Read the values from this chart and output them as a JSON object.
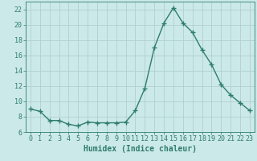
{
  "x": [
    0,
    1,
    2,
    3,
    4,
    5,
    6,
    7,
    8,
    9,
    10,
    11,
    12,
    13,
    14,
    15,
    16,
    17,
    18,
    19,
    20,
    21,
    22,
    23
  ],
  "y": [
    9.0,
    8.7,
    7.5,
    7.5,
    7.0,
    6.8,
    7.3,
    7.2,
    7.2,
    7.2,
    7.3,
    8.8,
    11.7,
    17.0,
    20.2,
    22.2,
    20.2,
    19.0,
    16.7,
    14.8,
    12.2,
    10.8,
    9.8,
    8.8
  ],
  "line_color": "#2e7d6e",
  "marker": "+",
  "markersize": 4,
  "linewidth": 1.0,
  "bg_color": "#cce9e9",
  "grid_color": "#b0cfcf",
  "xlabel": "Humidex (Indice chaleur)",
  "xlabel_fontsize": 7,
  "tick_fontsize": 6,
  "xlim": [
    -0.5,
    23.5
  ],
  "ylim": [
    6,
    23
  ],
  "yticks": [
    6,
    8,
    10,
    12,
    14,
    16,
    18,
    20,
    22
  ],
  "xticks": [
    0,
    1,
    2,
    3,
    4,
    5,
    6,
    7,
    8,
    9,
    10,
    11,
    12,
    13,
    14,
    15,
    16,
    17,
    18,
    19,
    20,
    21,
    22,
    23
  ]
}
